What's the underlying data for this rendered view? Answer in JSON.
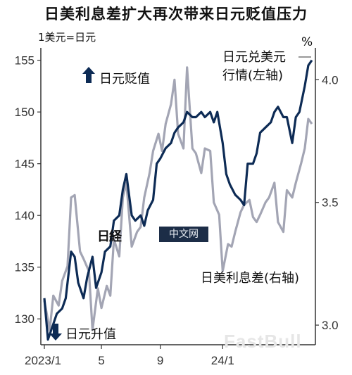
{
  "title": "日美利息差扩大再次带来日元贬值压力",
  "unit_note": "1美元=日元",
  "right_unit": "%",
  "watermarks": {
    "logo": "日経",
    "box": "中文网",
    "corner": "FastBull"
  },
  "annotations": {
    "weak": "日元贬值",
    "strong": "日元升值",
    "fx_label_line1": "日元兑美元",
    "fx_label_line2": "行情(左轴)",
    "spread_label": "日美利息差(右轴)"
  },
  "colors": {
    "fx_line": "#0d2b55",
    "spread_line": "#a3a5b4",
    "arrow": "#0d2b55"
  },
  "chart_data": {
    "type": "line",
    "title": "日美利息差扩大再次带来日元贬值压力",
    "x_ticks": [
      "2023/1",
      "5",
      "9",
      "24/1"
    ],
    "y_left": {
      "label": "1美元=日元",
      "range": [
        127.5,
        156.2
      ],
      "ticks": [
        130,
        135,
        140,
        145,
        150,
        155
      ]
    },
    "y_right": {
      "label": "%",
      "range": [
        2.92,
        4.13
      ],
      "ticks": [
        "3.0",
        "3.5",
        "4.0"
      ]
    },
    "series": [
      {
        "name": "日元兑美元行情(左轴)",
        "axis": "left",
        "x": [
          0,
          0.02,
          0.05,
          0.07,
          0.1,
          0.12,
          0.15,
          0.17,
          0.19,
          0.22,
          0.24,
          0.27,
          0.29,
          0.32,
          0.34,
          0.37,
          0.39,
          0.42,
          0.44,
          0.46,
          0.49,
          0.51,
          0.54,
          0.56,
          0.58,
          0.61,
          0.63,
          0.65,
          0.68,
          0.71,
          0.73,
          0.75,
          0.78,
          0.8,
          0.83,
          0.85,
          0.88,
          0.9,
          0.93,
          0.95,
          0.97,
          1,
          1.02,
          1.04,
          1.07,
          1.1,
          1.12,
          1.14,
          1.17,
          1.19,
          1.21,
          1.24,
          1.27,
          1.29,
          1.31,
          1.34,
          1.36,
          1.39,
          1.41,
          1.43,
          1.46,
          1.48,
          1.5
        ],
        "values": [
          132,
          128,
          129.5,
          130.5,
          131,
          132,
          136.5,
          136,
          133.5,
          132,
          134,
          136,
          133,
          134.5,
          136.5,
          137,
          139.5,
          140,
          142.5,
          144,
          140,
          139.5,
          140,
          139,
          140.5,
          141.5,
          145,
          145.5,
          146.5,
          147,
          148,
          148.5,
          149,
          150,
          149.5,
          149.5,
          150,
          149.5,
          150,
          149,
          150,
          147,
          144,
          143,
          142,
          141.5,
          141,
          145,
          145,
          146,
          148,
          148.5,
          149,
          150,
          150.5,
          149.5,
          149.5,
          147,
          149.5,
          150,
          152.5,
          154.5,
          155
        ]
      },
      {
        "name": "日美利息差(右轴)",
        "axis": "right",
        "x": [
          0,
          0.03,
          0.05,
          0.08,
          0.1,
          0.13,
          0.15,
          0.17,
          0.2,
          0.22,
          0.25,
          0.27,
          0.3,
          0.32,
          0.35,
          0.37,
          0.39,
          0.42,
          0.44,
          0.46,
          0.49,
          0.52,
          0.54,
          0.56,
          0.59,
          0.61,
          0.64,
          0.66,
          0.68,
          0.71,
          0.73,
          0.75,
          0.78,
          0.8,
          0.83,
          0.85,
          0.88,
          0.9,
          0.93,
          0.95,
          0.98,
          1,
          1.03,
          1.05,
          1.07,
          1.1,
          1.12,
          1.15,
          1.17,
          1.19,
          1.21,
          1.24,
          1.26,
          1.29,
          1.31,
          1.34,
          1.36,
          1.39,
          1.41,
          1.44,
          1.46,
          1.48,
          1.5
        ],
        "values": [
          3.1,
          2.98,
          3.12,
          3.08,
          3.18,
          3.24,
          3.52,
          3.53,
          3.3,
          3.27,
          3.22,
          2.98,
          3.15,
          3.07,
          3.16,
          3.12,
          3.35,
          3.28,
          3.52,
          3.58,
          3.32,
          3.38,
          3.4,
          3.52,
          3.62,
          3.71,
          3.78,
          3.71,
          3.82,
          3.9,
          4.0,
          3.78,
          3.72,
          4.05,
          3.72,
          3.7,
          3.62,
          3.72,
          3.71,
          3.5,
          3.45,
          3.22,
          3.33,
          3.32,
          3.38,
          3.46,
          3.49,
          3.51,
          3.44,
          3.42,
          3.45,
          3.5,
          3.52,
          3.58,
          3.42,
          3.38,
          3.55,
          3.52,
          3.58,
          3.66,
          3.72,
          3.84,
          3.82
        ]
      }
    ],
    "grid": false,
    "legend": "none"
  }
}
